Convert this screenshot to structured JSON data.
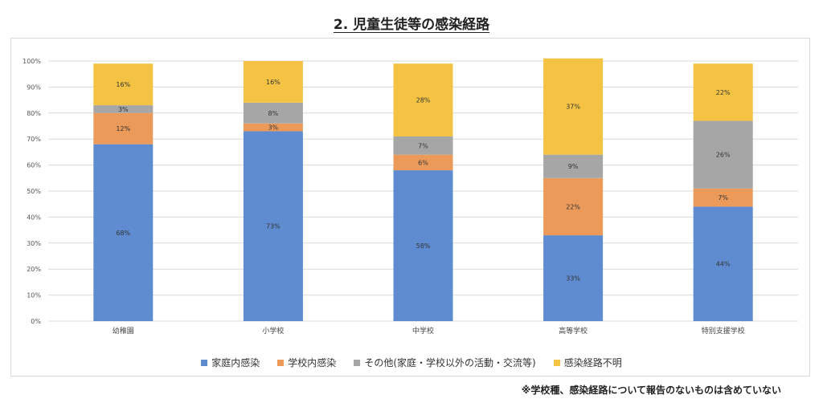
{
  "title": "2. 児童生徒等の感染経路",
  "footnote": "※学校種、感染経路について報告のないものは含めていない",
  "chart_data": {
    "type": "bar",
    "stacked": true,
    "categories": [
      "幼稚園",
      "小学校",
      "中学校",
      "高等学校",
      "特別支援学校"
    ],
    "series": [
      {
        "name": "家庭内感染",
        "color": "#5f8bd0",
        "values": [
          68,
          73,
          58,
          33,
          44
        ]
      },
      {
        "name": "学校内感染",
        "color": "#eb9a5a",
        "values": [
          12,
          3,
          6,
          22,
          7
        ]
      },
      {
        "name": "その他(家庭・学校以外の活動・交流等)",
        "color": "#a6a6a6",
        "values": [
          3,
          8,
          7,
          9,
          26
        ]
      },
      {
        "name": "感染経路不明",
        "color": "#f4c343",
        "values": [
          16,
          16,
          28,
          37,
          22
        ]
      }
    ],
    "labels": [
      [
        "68%",
        "12%",
        "3%",
        "16%"
      ],
      [
        "73%",
        "3%",
        "8%",
        "16%"
      ],
      [
        "58%",
        "6%",
        "7%",
        "28%"
      ],
      [
        "33%",
        "22%",
        "9%",
        "37%"
      ],
      [
        "44%",
        "7%",
        "26%",
        "22%"
      ]
    ],
    "yticks": [
      "0%",
      "10%",
      "20%",
      "30%",
      "40%",
      "50%",
      "60%",
      "70%",
      "80%",
      "90%",
      "100%"
    ],
    "ylim": [
      0,
      100
    ],
    "grid": true,
    "legend_position": "bottom"
  }
}
